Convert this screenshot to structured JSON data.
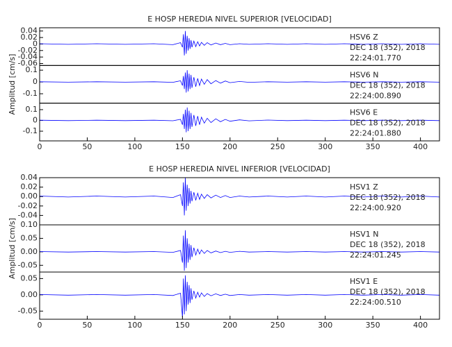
{
  "chart_data": [
    {
      "type": "line",
      "title": "E HOSP HEREDIA NIVEL SUPERIOR [VELOCIDAD]",
      "ylabel": "Amplitud [cm/s]",
      "xlim": [
        0,
        420
      ],
      "xticks": [
        0,
        50,
        100,
        150,
        200,
        250,
        300,
        350,
        400
      ],
      "color": "#0000ff",
      "x": [
        0,
        30,
        60,
        90,
        120,
        140,
        148,
        150,
        151,
        152,
        153,
        154,
        155,
        156,
        157,
        158,
        159,
        160,
        162,
        164,
        166,
        168,
        170,
        173,
        176,
        180,
        185,
        190,
        195,
        200,
        210,
        220,
        240,
        260,
        280,
        300,
        320,
        340,
        360,
        380,
        400,
        420
      ],
      "panels": [
        {
          "station": "HSV6   Z",
          "date": "DEC 18 (352), 2018",
          "time": "22:24:01.770",
          "ylim": [
            -0.066,
            0.05
          ],
          "yticks": [
            0.04,
            0.02,
            0.0,
            -0.02,
            -0.04,
            -0.06
          ],
          "values": [
            0.001,
            -0.001,
            0.001,
            -0.001,
            0.001,
            -0.002,
            0.004,
            -0.01,
            0.03,
            -0.035,
            0.04,
            -0.03,
            0.025,
            -0.02,
            0.018,
            -0.015,
            0.012,
            -0.01,
            0.009,
            -0.008,
            0.007,
            -0.006,
            0.005,
            -0.004,
            0.004,
            -0.003,
            0.003,
            -0.002,
            0.002,
            -0.002,
            0.001,
            -0.001,
            0.001,
            -0.001,
            0.001,
            -0.001,
            0.001,
            -0.001,
            0.001,
            -0.001,
            0.001,
            -0.001
          ]
        },
        {
          "station": "HSV6   N",
          "date": "DEC 18 (352), 2018",
          "time": "22:24:00.890",
          "ylim": [
            -0.18,
            0.14
          ],
          "yticks": [
            0.1,
            0.0,
            -0.1
          ],
          "values": [
            0.002,
            -0.002,
            0.002,
            -0.002,
            0.002,
            -0.003,
            0.01,
            -0.03,
            0.05,
            -0.06,
            0.08,
            -0.09,
            0.1,
            -0.08,
            0.07,
            -0.06,
            0.06,
            -0.05,
            0.04,
            -0.04,
            0.03,
            -0.03,
            0.025,
            -0.02,
            0.02,
            -0.015,
            0.012,
            -0.01,
            0.008,
            -0.006,
            0.004,
            -0.003,
            0.002,
            -0.002,
            0.002,
            -0.002,
            0.002,
            -0.002,
            0.002,
            -0.002,
            0.002,
            -0.002
          ]
        },
        {
          "station": "HSV6   E",
          "date": "DEC 18 (352), 2018",
          "time": "22:24:01.880",
          "ylim": [
            -0.19,
            0.16
          ],
          "yticks": [
            0.1,
            0.0,
            -0.1
          ],
          "values": [
            0.002,
            -0.002,
            0.002,
            -0.002,
            0.002,
            -0.003,
            0.01,
            -0.04,
            0.06,
            -0.08,
            0.1,
            -0.11,
            0.12,
            -0.1,
            0.09,
            -0.08,
            0.07,
            -0.06,
            0.05,
            -0.05,
            0.04,
            -0.04,
            0.03,
            -0.025,
            0.02,
            -0.02,
            0.015,
            -0.012,
            0.01,
            -0.008,
            0.005,
            -0.004,
            0.003,
            -0.002,
            0.002,
            -0.002,
            0.002,
            -0.002,
            0.002,
            -0.002,
            0.002,
            -0.002
          ]
        }
      ]
    },
    {
      "type": "line",
      "title": "E HOSP HEREDIA NIVEL INFERIOR [VELOCIDAD]",
      "ylabel": "Amplitud [cm/s]",
      "xlim": [
        0,
        420
      ],
      "xticks": [
        0,
        50,
        100,
        150,
        200,
        250,
        300,
        350,
        400
      ],
      "color": "#0000ff",
      "x": [
        0,
        30,
        60,
        90,
        120,
        140,
        148,
        150,
        151,
        152,
        153,
        154,
        155,
        156,
        157,
        158,
        159,
        160,
        162,
        164,
        166,
        168,
        170,
        173,
        176,
        180,
        185,
        190,
        195,
        200,
        210,
        220,
        240,
        260,
        280,
        300,
        320,
        340,
        360,
        380,
        400,
        420
      ],
      "panels": [
        {
          "station": "HSV1   Z",
          "date": "DEC 18 (352), 2018",
          "time": "22:24:00.920",
          "ylim": [
            -0.06,
            0.04
          ],
          "yticks": [
            {
              "value": 0.04,
              "label": "0.04"
            },
            {
              "value": 0.02,
              "label": "0.02"
            },
            {
              "value": 0.0,
              "label": "0.00"
            },
            {
              "value": -0.02,
              "label": "-0.02"
            },
            {
              "value": -0.04,
              "label": "-0.04"
            }
          ],
          "values": [
            0.001,
            -0.001,
            0.001,
            -0.001,
            0.001,
            -0.002,
            0.004,
            -0.02,
            0.03,
            -0.04,
            0.04,
            -0.03,
            0.025,
            -0.02,
            0.018,
            -0.015,
            0.012,
            -0.01,
            0.009,
            -0.008,
            0.007,
            -0.006,
            0.005,
            -0.004,
            0.004,
            -0.003,
            0.003,
            -0.002,
            0.002,
            -0.002,
            0.001,
            -0.001,
            0.001,
            -0.001,
            0.001,
            -0.001,
            0.001,
            -0.001,
            0.001,
            -0.001,
            0.001,
            -0.001
          ]
        },
        {
          "station": "HSV1   N",
          "date": "DEC 18 (352), 2018",
          "time": "22:24:01.245",
          "ylim": [
            -0.075,
            0.1
          ],
          "yticks": [
            {
              "value": 0.1,
              "label": "0.10"
            },
            {
              "value": 0.05,
              "label": "0.05"
            },
            {
              "value": 0.0,
              "label": "0.00"
            },
            {
              "value": -0.05,
              "label": "-0.05"
            }
          ],
          "values": [
            0.001,
            -0.001,
            0.001,
            -0.001,
            0.001,
            -0.002,
            0.005,
            -0.04,
            0.06,
            -0.07,
            0.08,
            -0.06,
            0.05,
            -0.04,
            0.03,
            -0.03,
            0.025,
            -0.02,
            0.015,
            -0.012,
            0.01,
            -0.008,
            0.007,
            -0.006,
            0.005,
            -0.004,
            0.003,
            -0.003,
            0.002,
            -0.002,
            0.002,
            -0.001,
            0.001,
            -0.001,
            0.001,
            -0.001,
            0.001,
            -0.001,
            0.001,
            -0.001,
            0.001,
            -0.001
          ]
        },
        {
          "station": "HSV1   E",
          "date": "DEC 18 (352), 2018",
          "time": "22:24:00.510",
          "ylim": [
            -0.075,
            0.07
          ],
          "yticks": [
            {
              "value": 0.05,
              "label": "0.05"
            },
            {
              "value": 0.0,
              "label": "0.00"
            },
            {
              "value": -0.05,
              "label": "-0.05"
            }
          ],
          "values": [
            0.001,
            -0.001,
            0.001,
            -0.001,
            0.001,
            -0.002,
            0.005,
            -0.07,
            0.05,
            -0.06,
            0.06,
            -0.05,
            0.04,
            -0.03,
            0.03,
            -0.025,
            0.02,
            -0.015,
            0.012,
            -0.01,
            0.008,
            -0.007,
            0.006,
            -0.005,
            0.004,
            -0.003,
            0.003,
            -0.002,
            0.002,
            -0.002,
            0.001,
            -0.001,
            0.001,
            -0.001,
            0.001,
            -0.001,
            0.001,
            -0.001,
            0.001,
            -0.001,
            0.001,
            -0.001
          ]
        }
      ]
    }
  ]
}
